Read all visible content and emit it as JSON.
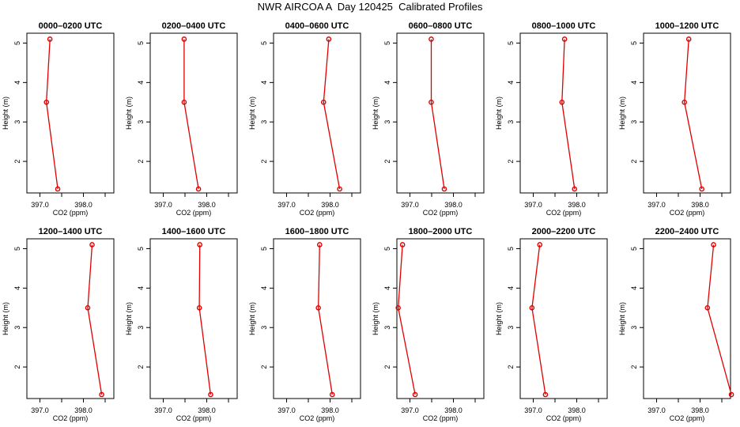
{
  "title": "NWR AIRCOA A  Day 120425  Calibrated Profiles",
  "style": {
    "line_color": "#e00000",
    "marker": "open-circle",
    "background": "#ffffff"
  },
  "chart_data": [
    {
      "type": "line",
      "title": "0000–0200 UTC",
      "xlabel": "CO2 (ppm)",
      "ylabel": "Height (m)",
      "xticks": [
        "397.0",
        "398.0"
      ],
      "yticks": [
        "2",
        "3",
        "4",
        "5"
      ],
      "xlim": [
        396.7,
        398.7
      ],
      "ylim": [
        1.2,
        5.25
      ],
      "grid": false,
      "x": [
        397.23,
        397.15,
        397.41
      ],
      "y": [
        5.1,
        3.5,
        1.3
      ]
    },
    {
      "type": "line",
      "title": "0200–0400 UTC",
      "xlabel": "CO2 (ppm)",
      "ylabel": "Height (m)",
      "xticks": [
        "397.0",
        "398.0"
      ],
      "yticks": [
        "2",
        "3",
        "4",
        "5"
      ],
      "xlim": [
        396.7,
        398.7
      ],
      "ylim": [
        1.2,
        5.25
      ],
      "grid": false,
      "x": [
        397.48,
        397.48,
        397.81
      ],
      "y": [
        5.1,
        3.5,
        1.3
      ]
    },
    {
      "type": "line",
      "title": "0400–0600 UTC",
      "xlabel": "CO2 (ppm)",
      "ylabel": "Height (m)",
      "xticks": [
        "397.0",
        "398.0"
      ],
      "yticks": [
        "2",
        "3",
        "4",
        "5"
      ],
      "xlim": [
        396.7,
        398.7
      ],
      "ylim": [
        1.2,
        5.25
      ],
      "grid": false,
      "x": [
        397.97,
        397.85,
        398.22
      ],
      "y": [
        5.1,
        3.5,
        1.3
      ]
    },
    {
      "type": "line",
      "title": "0600–0800 UTC",
      "xlabel": "CO2 (ppm)",
      "ylabel": "Height (m)",
      "xticks": [
        "397.0",
        "398.0"
      ],
      "yticks": [
        "2",
        "3",
        "4",
        "5"
      ],
      "xlim": [
        396.7,
        398.7
      ],
      "ylim": [
        1.2,
        5.25
      ],
      "grid": false,
      "x": [
        397.49,
        397.49,
        397.79
      ],
      "y": [
        5.1,
        3.5,
        1.3
      ]
    },
    {
      "type": "line",
      "title": "0800–1000 UTC",
      "xlabel": "CO2 (ppm)",
      "ylabel": "Height (m)",
      "xticks": [
        "397.0",
        "398.0"
      ],
      "yticks": [
        "2",
        "3",
        "4",
        "5"
      ],
      "xlim": [
        396.7,
        398.7
      ],
      "ylim": [
        1.2,
        5.25
      ],
      "grid": false,
      "x": [
        397.72,
        397.66,
        397.95
      ],
      "y": [
        5.1,
        3.5,
        1.3
      ]
    },
    {
      "type": "line",
      "title": "1000–1200 UTC",
      "xlabel": "CO2 (ppm)",
      "ylabel": "Height (m)",
      "xticks": [
        "397.0",
        "398.0"
      ],
      "yticks": [
        "2",
        "3",
        "4",
        "5"
      ],
      "xlim": [
        396.7,
        398.7
      ],
      "ylim": [
        1.2,
        5.25
      ],
      "grid": false,
      "x": [
        397.74,
        397.64,
        398.04
      ],
      "y": [
        5.1,
        3.5,
        1.3
      ]
    },
    {
      "type": "line",
      "title": "1200–1400 UTC",
      "xlabel": "CO2 (ppm)",
      "ylabel": "Height (m)",
      "xticks": [
        "397.0",
        "398.0"
      ],
      "yticks": [
        "2",
        "3",
        "4",
        "5"
      ],
      "xlim": [
        396.7,
        398.7
      ],
      "ylim": [
        1.2,
        5.25
      ],
      "grid": false,
      "x": [
        398.2,
        398.1,
        398.42
      ],
      "y": [
        5.1,
        3.5,
        1.3
      ]
    },
    {
      "type": "line",
      "title": "1400–1600 UTC",
      "xlabel": "CO2 (ppm)",
      "ylabel": "Height (m)",
      "xticks": [
        "397.0",
        "398.0"
      ],
      "yticks": [
        "2",
        "3",
        "4",
        "5"
      ],
      "xlim": [
        396.7,
        398.7
      ],
      "ylim": [
        1.2,
        5.25
      ],
      "grid": false,
      "x": [
        397.84,
        397.83,
        398.09
      ],
      "y": [
        5.1,
        3.5,
        1.3
      ]
    },
    {
      "type": "line",
      "title": "1600–1800 UTC",
      "xlabel": "CO2 (ppm)",
      "ylabel": "Height (m)",
      "xticks": [
        "397.0",
        "398.0"
      ],
      "yticks": [
        "2",
        "3",
        "4",
        "5"
      ],
      "xlim": [
        396.7,
        398.7
      ],
      "ylim": [
        1.2,
        5.25
      ],
      "grid": false,
      "x": [
        397.76,
        397.73,
        398.05
      ],
      "y": [
        5.1,
        3.5,
        1.3
      ]
    },
    {
      "type": "line",
      "title": "1800–2000 UTC",
      "xlabel": "CO2 (ppm)",
      "ylabel": "Height (m)",
      "xticks": [
        "397.0",
        "398.0"
      ],
      "yticks": [
        "2",
        "3",
        "4",
        "5"
      ],
      "xlim": [
        396.7,
        398.7
      ],
      "ylim": [
        1.2,
        5.25
      ],
      "grid": false,
      "x": [
        396.83,
        396.73,
        397.12
      ],
      "y": [
        5.1,
        3.5,
        1.3
      ]
    },
    {
      "type": "line",
      "title": "2000–2200 UTC",
      "xlabel": "CO2 (ppm)",
      "ylabel": "Height (m)",
      "xticks": [
        "397.0",
        "398.0"
      ],
      "yticks": [
        "2",
        "3",
        "4",
        "5"
      ],
      "xlim": [
        396.7,
        398.7
      ],
      "ylim": [
        1.2,
        5.25
      ],
      "grid": false,
      "x": [
        397.15,
        396.97,
        397.28
      ],
      "y": [
        5.1,
        3.5,
        1.3
      ]
    },
    {
      "type": "line",
      "title": "2200–2400 UTC",
      "xlabel": "CO2 (ppm)",
      "ylabel": "Height (m)",
      "xticks": [
        "397.0",
        "398.0"
      ],
      "yticks": [
        "2",
        "3",
        "4",
        "5"
      ],
      "xlim": [
        396.7,
        398.7
      ],
      "ylim": [
        1.2,
        5.25
      ],
      "grid": false,
      "x": [
        398.31,
        398.17,
        398.72
      ],
      "y": [
        5.1,
        3.5,
        1.3
      ]
    }
  ]
}
